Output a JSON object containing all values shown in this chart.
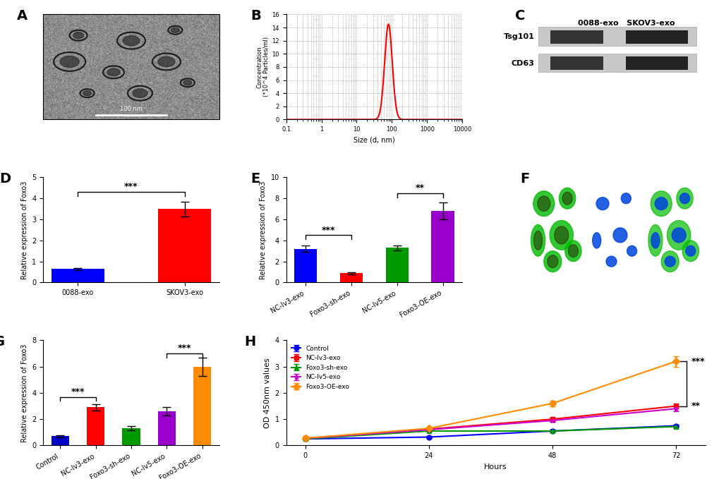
{
  "panel_labels": [
    "A",
    "B",
    "C",
    "D",
    "E",
    "F",
    "G",
    "H"
  ],
  "panel_D": {
    "categories": [
      "0088-exo",
      "SKOV3-exo"
    ],
    "values": [
      0.65,
      3.5
    ],
    "errors": [
      0.05,
      0.35
    ],
    "colors": [
      "#0000FF",
      "#FF0000"
    ],
    "ylabel": "Relative expression of Foxo3",
    "ylim": [
      0,
      5
    ],
    "yticks": [
      0,
      1,
      2,
      3,
      4,
      5
    ],
    "significance": "***",
    "sig_y": 4.3,
    "sig_x1": 0,
    "sig_x2": 1
  },
  "panel_E": {
    "categories": [
      "NC-lv3-exo",
      "Foxo3-sh-exo",
      "NC-lv5-exo",
      "Foxo3-OE-exo"
    ],
    "values": [
      3.2,
      0.9,
      3.3,
      6.8
    ],
    "errors": [
      0.3,
      0.1,
      0.25,
      0.8
    ],
    "colors": [
      "#0000FF",
      "#FF0000",
      "#009900",
      "#9900CC"
    ],
    "ylabel": "Relative expression of Foxo3",
    "ylim": [
      0,
      10
    ],
    "yticks": [
      0,
      2,
      4,
      6,
      8,
      10
    ],
    "sig1": "***",
    "sig1_y": 4.5,
    "sig1_x1": 0,
    "sig1_x2": 1,
    "sig2": "**",
    "sig2_y": 8.5,
    "sig2_x1": 2,
    "sig2_x2": 3
  },
  "panel_G": {
    "categories": [
      "Control",
      "NC-lv3-exo",
      "Foxo3-sh-exo",
      "NC-lv5-exo",
      "Foxo3-OE-exo"
    ],
    "values": [
      0.7,
      2.9,
      1.3,
      2.6,
      6.0
    ],
    "errors": [
      0.1,
      0.25,
      0.15,
      0.3,
      0.7
    ],
    "colors": [
      "#0000CD",
      "#FF0000",
      "#009900",
      "#9900CC",
      "#FF8C00"
    ],
    "ylabel": "Relative expression of Foxo3",
    "ylim": [
      0,
      8
    ],
    "yticks": [
      0,
      2,
      4,
      6,
      8
    ],
    "sig1": "***",
    "sig1_y": 3.7,
    "sig1_x1": 0,
    "sig1_x2": 1,
    "sig2": "***",
    "sig2_y": 7.0,
    "sig2_x1": 3,
    "sig2_x2": 4
  },
  "panel_H": {
    "hours": [
      0,
      24,
      48,
      72
    ],
    "series": {
      "Control": {
        "values": [
          0.25,
          0.32,
          0.55,
          0.75
        ],
        "errors": [
          0.02,
          0.03,
          0.04,
          0.05
        ],
        "color": "#0000FF",
        "marker": "o"
      },
      "NC-lv3-exo": {
        "values": [
          0.27,
          0.62,
          1.0,
          1.5
        ],
        "errors": [
          0.03,
          0.05,
          0.07,
          0.1
        ],
        "color": "#FF0000",
        "marker": "s"
      },
      "Foxo3-sh-exo": {
        "values": [
          0.25,
          0.55,
          0.55,
          0.72
        ],
        "errors": [
          0.02,
          0.04,
          0.04,
          0.05
        ],
        "color": "#009900",
        "marker": "^"
      },
      "NC-lv5-exo": {
        "values": [
          0.27,
          0.6,
          0.95,
          1.4
        ],
        "errors": [
          0.03,
          0.05,
          0.06,
          0.09
        ],
        "color": "#CC00CC",
        "marker": "*"
      },
      "Foxo3-OE-exo": {
        "values": [
          0.28,
          0.65,
          1.6,
          3.2
        ],
        "errors": [
          0.03,
          0.05,
          0.1,
          0.2
        ],
        "color": "#FF8C00",
        "marker": "D"
      }
    },
    "xlabel": "Hours",
    "ylabel": "OD 450nm values",
    "ylim": [
      0,
      4
    ],
    "yticks": [
      0,
      1,
      2,
      3,
      4
    ],
    "xticks": [
      0,
      24,
      48,
      72
    ]
  },
  "panel_B": {
    "peak_size": 80,
    "peak_value": 14.5,
    "ylabel": "Concentration\n(*10^4 Particles/ml)",
    "xlabel": "Size (d, nm)",
    "xlim": [
      0.1,
      10000
    ],
    "ylim": [
      0,
      16
    ],
    "yticks": [
      0,
      2,
      4,
      6,
      8,
      10,
      12,
      14,
      16
    ],
    "xticks": [
      0.1,
      1,
      10,
      100,
      1000,
      10000
    ]
  }
}
